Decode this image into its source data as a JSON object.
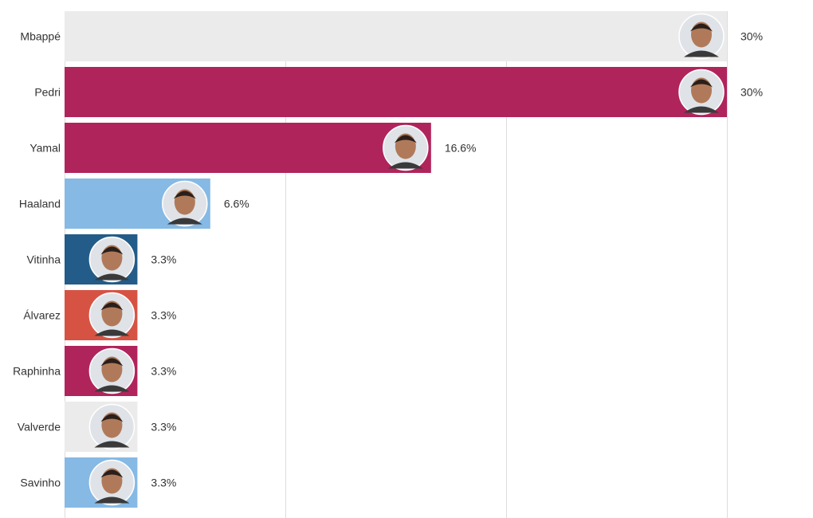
{
  "chart_data": {
    "type": "bar",
    "orientation": "horizontal",
    "categories": [
      "Mbappé",
      "Pedri",
      "Yamal",
      "Haaland",
      "Vitinha",
      "Álvarez",
      "Raphinha",
      "Valverde",
      "Savinho"
    ],
    "values": [
      30,
      30,
      16.6,
      6.6,
      3.3,
      3.3,
      3.3,
      3.3,
      3.3
    ],
    "value_labels": [
      "30%",
      "30%",
      "16.6%",
      "6.6%",
      "3.3%",
      "3.3%",
      "3.3%",
      "3.3%",
      "3.3%"
    ],
    "colors": [
      "#ebebeb",
      "#b0245c",
      "#b0245c",
      "#86b9e4",
      "#235c88",
      "#d65344",
      "#b0245c",
      "#ebebeb",
      "#86b9e4"
    ],
    "avatar_icons": [
      "player-photo-icon",
      "player-photo-icon",
      "player-photo-icon",
      "player-photo-icon",
      "player-photo-icon",
      "player-photo-icon",
      "player-photo-icon",
      "player-photo-icon",
      "player-photo-icon"
    ],
    "xlim": [
      0,
      30
    ],
    "grid": true,
    "title": "",
    "xlabel": "",
    "ylabel": ""
  }
}
